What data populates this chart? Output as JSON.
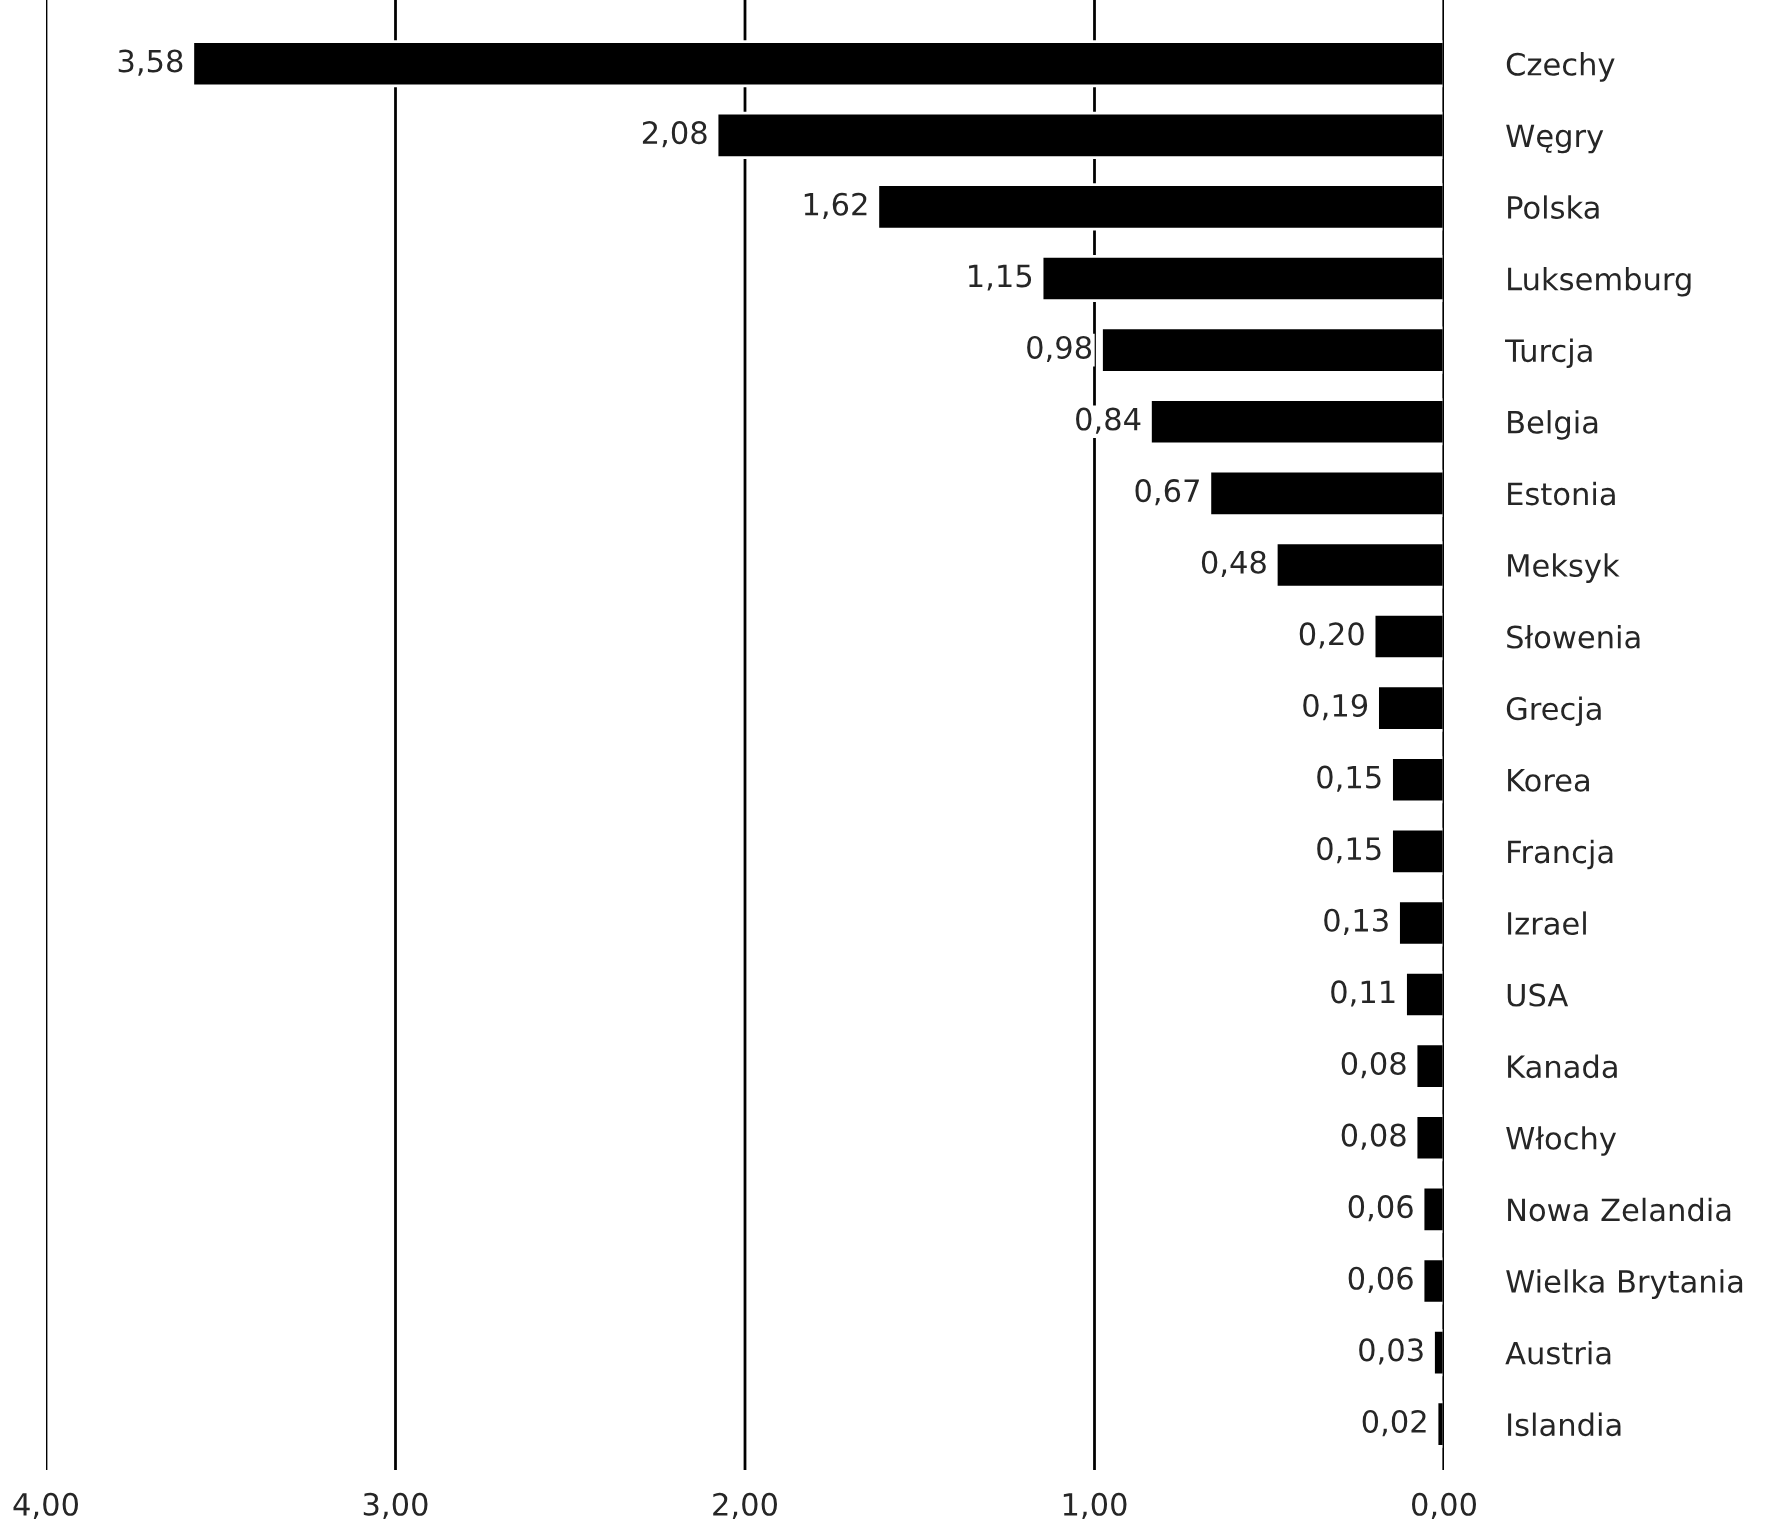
{
  "chart_data": {
    "type": "bar",
    "orientation": "horizontal",
    "categories": [
      "Czechy",
      "Węgry",
      "Polska",
      "Luksemburg",
      "Turcja",
      "Belgia",
      "Estonia",
      "Meksyk",
      "Słowenia",
      "Grecja",
      "Korea",
      "Francja",
      "Izrael",
      "USA",
      "Kanada",
      "Włochy",
      "Nowa Zelandia",
      "Wielka Brytania",
      "Austria",
      "Islandia"
    ],
    "values": [
      3.58,
      2.08,
      1.62,
      1.15,
      0.98,
      0.84,
      0.67,
      0.48,
      0.2,
      0.19,
      0.15,
      0.15,
      0.13,
      0.11,
      0.08,
      0.08,
      0.06,
      0.06,
      0.03,
      0.02
    ],
    "value_labels": [
      "3,58",
      "2,08",
      "1,62",
      "1,15",
      "0,98",
      "0,84",
      "0,67",
      "0,48",
      "0,20",
      "0,19",
      "0,15",
      "0,15",
      "0,13",
      "0,11",
      "0,08",
      "0,08",
      "0,06",
      "0,06",
      "0,03",
      "0,02"
    ],
    "color": "#000000",
    "xlim": [
      4,
      0
    ],
    "xticks": [
      {
        "value": 4,
        "label": "4,00"
      },
      {
        "value": 3,
        "label": "3,00"
      },
      {
        "value": 2,
        "label": "2,00"
      },
      {
        "value": 1,
        "label": "1,00"
      },
      {
        "value": 0,
        "label": "0,00"
      }
    ],
    "grid": "x"
  }
}
